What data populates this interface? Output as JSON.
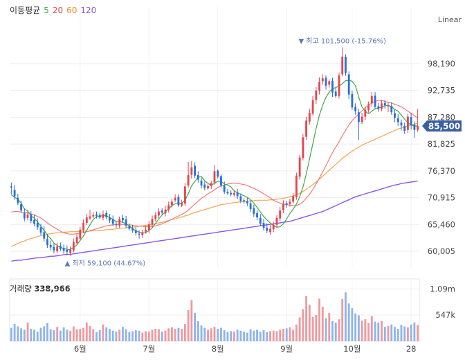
{
  "legend": {
    "title": "이동평균",
    "ma5": "5",
    "ma20": "20",
    "ma60": "60",
    "ma120": "120"
  },
  "scale_mode": "Linear",
  "volume_panel": {
    "label": "거래량",
    "value": "338,966"
  },
  "colors": {
    "up": "#e8434f",
    "down": "#2a6fd6",
    "ma5": "#3ea84a",
    "ma20": "#f07a7a",
    "ma60": "#f5a54a",
    "ma120": "#8f55e0",
    "badge": "#3b5fa0",
    "annotation": "#5a79b3"
  },
  "chart_data": {
    "type": "candlestick",
    "price_axis": {
      "ticks": [
        "98,190",
        "92,735",
        "87,280",
        "81,825",
        "76,370",
        "70,915",
        "65,460",
        "60,005"
      ],
      "tick_values": [
        98190,
        92735,
        87280,
        81825,
        76370,
        70915,
        65460,
        60005
      ],
      "ylim": [
        56500,
        105500
      ]
    },
    "volume_axis": {
      "ticks": [
        "1.09m",
        "547k"
      ],
      "tick_values": [
        1090000,
        547000
      ],
      "ylim": [
        0,
        1300000
      ]
    },
    "x_ticks": [
      "6월",
      "7월",
      "8월",
      "9월",
      "10월",
      "28"
    ],
    "current_price": "85,500",
    "max_annotation": "최고 101,500 (-15.76%)",
    "min_annotation": "최저 59,100 (44.67%)",
    "n_sessions": 125,
    "x_tick_index": [
      21,
      42,
      63,
      84,
      104,
      122
    ],
    "closes": [
      73000,
      71200,
      69800,
      68300,
      66700,
      67500,
      66200,
      65600,
      64900,
      63800,
      62600,
      61300,
      60800,
      60200,
      61000,
      60500,
      60100,
      59900,
      60400,
      61900,
      62900,
      64400,
      65800,
      66900,
      67100,
      67400,
      67200,
      66900,
      67600,
      66900,
      66300,
      65600,
      65300,
      66600,
      66300,
      65200,
      64600,
      64200,
      63700,
      63400,
      63900,
      64400,
      65500,
      66600,
      67400,
      68100,
      67900,
      68500,
      69400,
      70100,
      70900,
      69400,
      69800,
      73200,
      75500,
      77100,
      75400,
      74600,
      73400,
      72900,
      73300,
      73900,
      76300,
      75200,
      73400,
      72100,
      71800,
      71600,
      71900,
      71200,
      70300,
      70200,
      69800,
      68600,
      67600,
      66900,
      65600,
      64800,
      64200,
      64600,
      65400,
      66800,
      68300,
      69700,
      69500,
      70100,
      71200,
      75400,
      79100,
      83200,
      86600,
      88200,
      90800,
      92700,
      94500,
      95200,
      93700,
      94600,
      92300,
      91600,
      95800,
      99600,
      96300,
      91900,
      89300,
      88500,
      86300,
      87400,
      88800,
      89900,
      91600,
      89400,
      89000,
      90100,
      89700,
      89600,
      88300,
      87200,
      86300,
      85600,
      84500,
      87400,
      85600,
      84700,
      85500
    ],
    "opens": [
      73200,
      72500,
      70900,
      69600,
      67800,
      66800,
      67500,
      66400,
      65800,
      64900,
      63900,
      62500,
      61300,
      60900,
      60000,
      61100,
      60700,
      60300,
      59700,
      60200,
      61700,
      62600,
      64300,
      65800,
      66700,
      67100,
      67500,
      67400,
      66800,
      67800,
      66900,
      66500,
      65500,
      65200,
      66800,
      66500,
      65100,
      64700,
      64300,
      63600,
      63300,
      64000,
      64300,
      65400,
      66600,
      67300,
      68300,
      67700,
      68500,
      69400,
      70400,
      71100,
      69300,
      69700,
      73400,
      75600,
      77400,
      75500,
      74400,
      73600,
      72800,
      73300,
      74000,
      76400,
      75300,
      73400,
      72100,
      71900,
      71500,
      72000,
      71200,
      70400,
      70200,
      69800,
      68800,
      67800,
      66800,
      65800,
      64800,
      63900,
      64500,
      65400,
      66700,
      68400,
      69800,
      69600,
      70100,
      71000,
      75200,
      79000,
      83300,
      86400,
      88000,
      90800,
      92700,
      94600,
      95300,
      93900,
      94700,
      92500,
      91600,
      96000,
      99600,
      96000,
      92000,
      89400,
      88300,
      86300,
      87400,
      88700,
      90100,
      91700,
      89500,
      89000,
      90200,
      89500,
      89600,
      88100,
      87100,
      86200,
      85500,
      84700,
      87300,
      85800,
      84700
    ],
    "highs": [
      74000,
      73500,
      71700,
      70300,
      68800,
      68400,
      68200,
      67500,
      66700,
      65600,
      65100,
      63500,
      62200,
      61700,
      61800,
      61800,
      61400,
      61200,
      61000,
      62600,
      63500,
      65000,
      66500,
      67600,
      68400,
      68000,
      68100,
      67900,
      68300,
      68300,
      67600,
      67300,
      66200,
      67100,
      67400,
      67200,
      65700,
      65400,
      64900,
      64300,
      64400,
      65200,
      66200,
      67300,
      68000,
      68800,
      68800,
      69300,
      70100,
      70700,
      71600,
      71600,
      70500,
      73900,
      78200,
      78400,
      78100,
      76300,
      75000,
      74200,
      73700,
      74400,
      77600,
      76700,
      75700,
      74200,
      72700,
      72400,
      72500,
      72700,
      71800,
      70800,
      70900,
      70400,
      69500,
      68400,
      67600,
      66600,
      65700,
      65400,
      66000,
      67400,
      69000,
      70400,
      70300,
      70700,
      71900,
      76000,
      79600,
      83900,
      87400,
      89000,
      91600,
      93400,
      95400,
      96000,
      95800,
      95000,
      95300,
      93200,
      96400,
      101500,
      100100,
      96600,
      92700,
      90100,
      89000,
      88200,
      89500,
      90500,
      92400,
      92400,
      90200,
      90800,
      90800,
      90300,
      90300,
      88900,
      87900,
      86800,
      86200,
      88000,
      88200,
      86400,
      89000
    ],
    "lows": [
      71600,
      70500,
      69400,
      67800,
      66100,
      66300,
      65700,
      65100,
      64400,
      63300,
      62000,
      60700,
      60200,
      59600,
      59600,
      60100,
      59500,
      59200,
      59100,
      59800,
      61400,
      62300,
      63700,
      65400,
      66400,
      66800,
      66700,
      66500,
      66300,
      66500,
      65800,
      65100,
      64800,
      64700,
      65800,
      64700,
      64200,
      63800,
      63200,
      62600,
      62700,
      63600,
      63700,
      64800,
      66100,
      66800,
      67500,
      67100,
      67900,
      68800,
      70000,
      69000,
      69000,
      69200,
      72900,
      74800,
      74900,
      74000,
      72800,
      72400,
      72500,
      72700,
      73600,
      74800,
      73000,
      71700,
      71500,
      71200,
      71100,
      70600,
      69800,
      69700,
      69200,
      68000,
      67000,
      66300,
      65100,
      64200,
      63700,
      63400,
      63900,
      64800,
      66200,
      67800,
      68900,
      69100,
      69700,
      70500,
      74600,
      78500,
      82700,
      85800,
      87600,
      90000,
      91900,
      93900,
      92900,
      93300,
      91400,
      91200,
      91100,
      95600,
      95700,
      91000,
      88800,
      87800,
      82700,
      85900,
      86700,
      88200,
      89400,
      88900,
      88400,
      88500,
      89000,
      88300,
      87800,
      86300,
      85500,
      84600,
      83900,
      84100,
      84800,
      83100,
      84300
    ],
    "volumes": [
      280000,
      360000,
      310000,
      270000,
      240000,
      390000,
      260000,
      240000,
      200000,
      280000,
      310000,
      380000,
      250000,
      230000,
      300000,
      220000,
      290000,
      240000,
      220000,
      310000,
      250000,
      260000,
      280000,
      390000,
      320000,
      250000,
      190000,
      230000,
      350000,
      290000,
      260000,
      220000,
      200000,
      240000,
      300000,
      250000,
      190000,
      210000,
      230000,
      220000,
      180000,
      210000,
      200000,
      240000,
      260000,
      250000,
      200000,
      220000,
      270000,
      290000,
      260000,
      280000,
      260000,
      360000,
      650000,
      860000,
      590000,
      420000,
      330000,
      280000,
      240000,
      270000,
      300000,
      260000,
      280000,
      230000,
      190000,
      210000,
      200000,
      240000,
      220000,
      200000,
      180000,
      250000,
      220000,
      240000,
      200000,
      230000,
      190000,
      210000,
      220000,
      210000,
      240000,
      260000,
      270000,
      290000,
      240000,
      350000,
      500000,
      670000,
      940000,
      760000,
      510000,
      550000,
      890000,
      720000,
      480000,
      590000,
      420000,
      390000,
      460000,
      880000,
      1020000,
      790000,
      690000,
      580000,
      540000,
      430000,
      460000,
      380000,
      520000,
      410000,
      390000,
      420000,
      300000,
      320000,
      350000,
      300000,
      260000,
      340000,
      310000,
      290000,
      350000,
      390000,
      339000
    ],
    "ma5": [
      71500,
      71000,
      70600,
      69800,
      68600,
      68200,
      67300,
      66700,
      66000,
      65100,
      64300,
      63300,
      62600,
      61700,
      61200,
      60800,
      60600,
      60400,
      60400,
      60800,
      61300,
      62200,
      63100,
      64300,
      65400,
      66500,
      67100,
      67100,
      67300,
      67200,
      66900,
      66500,
      66100,
      66100,
      65900,
      65600,
      65200,
      64600,
      64200,
      63900,
      63700,
      63800,
      64200,
      64800,
      65700,
      66600,
      67400,
      68000,
      68700,
      69300,
      69700,
      69700,
      69800,
      70400,
      71700,
      73300,
      74200,
      75100,
      75200,
      74400,
      73800,
      73500,
      73800,
      74300,
      74200,
      73700,
      73500,
      73100,
      72300,
      71900,
      71600,
      71300,
      71000,
      70500,
      69800,
      68900,
      68000,
      67100,
      66400,
      65800,
      65200,
      64900,
      65000,
      65600,
      66600,
      67700,
      68600,
      69600,
      71100,
      73100,
      75700,
      78800,
      81900,
      85000,
      87700,
      89700,
      91300,
      92400,
      93100,
      93300,
      93600,
      94100,
      94700,
      94800,
      94600,
      93700,
      91400,
      89400,
      88500,
      88000,
      88500,
      89000,
      89100,
      89400,
      89600,
      89700,
      89400,
      88900,
      88500,
      87700,
      86900,
      86200,
      85700,
      85500,
      85500
    ],
    "ma20": [
      68000,
      68100,
      68100,
      68000,
      67900,
      67800,
      67600,
      67400,
      67100,
      66800,
      66300,
      65800,
      65300,
      64900,
      64500,
      64100,
      63800,
      63600,
      63500,
      63500,
      63600,
      63700,
      63800,
      64000,
      64200,
      64400,
      64600,
      64800,
      65000,
      65200,
      65300,
      65400,
      65500,
      65500,
      65500,
      65400,
      65400,
      65300,
      65200,
      65100,
      65100,
      65000,
      65000,
      65100,
      65200,
      65400,
      65600,
      65900,
      66200,
      66500,
      66900,
      67200,
      67500,
      67900,
      68400,
      69000,
      69600,
      70200,
      70800,
      71200,
      71700,
      72100,
      72500,
      73000,
      73300,
      73500,
      73700,
      73800,
      73900,
      73800,
      73700,
      73600,
      73400,
      73100,
      72800,
      72500,
      72100,
      71700,
      71300,
      70900,
      70400,
      70100,
      69800,
      69600,
      69500,
      69400,
      69300,
      69300,
      69600,
      70100,
      70800,
      71600,
      72600,
      73700,
      74900,
      76200,
      77400,
      78800,
      80100,
      81200,
      82300,
      83500,
      84600,
      85700,
      86600,
      87300,
      87900,
      88600,
      89200,
      89700,
      90200,
      90500,
      90700,
      90700,
      90500,
      90300,
      90200,
      89900,
      89700,
      89400,
      89000,
      88500,
      88100,
      87600,
      87100
    ],
    "ma60": [
      61000,
      61300,
      61600,
      61900,
      62100,
      62400,
      62600,
      62800,
      63000,
      63200,
      63300,
      63500,
      63600,
      63700,
      63800,
      63800,
      63900,
      63900,
      64000,
      64000,
      64000,
      64100,
      64100,
      64100,
      64100,
      64200,
      64200,
      64300,
      64300,
      64400,
      64400,
      64500,
      64600,
      64700,
      64700,
      64800,
      64900,
      64900,
      65000,
      65100,
      65200,
      65300,
      65400,
      65500,
      65600,
      65800,
      65900,
      66100,
      66300,
      66500,
      66600,
      66800,
      67000,
      67200,
      67400,
      67700,
      67900,
      68100,
      68300,
      68500,
      68700,
      68900,
      69100,
      69300,
      69500,
      69600,
      69700,
      69800,
      69900,
      70000,
      70100,
      70100,
      70200,
      70300,
      70300,
      70400,
      70400,
      70400,
      70400,
      70500,
      70500,
      70600,
      70700,
      70800,
      70900,
      71100,
      71300,
      71500,
      71800,
      72200,
      72600,
      73100,
      73600,
      74100,
      74700,
      75300,
      75900,
      76500,
      77100,
      77700,
      78300,
      78900,
      79400,
      79900,
      80400,
      80800,
      81200,
      81600,
      81900,
      82200,
      82500,
      82800,
      83100,
      83400,
      83700,
      84000,
      84300,
      84600,
      84900,
      85100,
      85300,
      85500,
      85700,
      85900,
      86100
    ],
    "ma120": [
      58000,
      58100,
      58200,
      58200,
      58300,
      58400,
      58500,
      58600,
      58700,
      58700,
      58800,
      58900,
      59000,
      59000,
      59100,
      59200,
      59300,
      59400,
      59400,
      59500,
      59600,
      59700,
      59800,
      59900,
      60000,
      60100,
      60200,
      60300,
      60400,
      60500,
      60600,
      60700,
      60800,
      60900,
      61000,
      61100,
      61200,
      61300,
      61400,
      61500,
      61600,
      61700,
      61800,
      61900,
      62000,
      62100,
      62200,
      62300,
      62400,
      62500,
      62600,
      62700,
      62800,
      62900,
      63000,
      63100,
      63200,
      63300,
      63400,
      63500,
      63600,
      63700,
      63800,
      63900,
      64000,
      64100,
      64200,
      64300,
      64400,
      64500,
      64600,
      64700,
      64800,
      64900,
      65000,
      65100,
      65200,
      65300,
      65400,
      65500,
      65600,
      65700,
      65800,
      65900,
      66000,
      66100,
      66300,
      66500,
      66700,
      66900,
      67100,
      67300,
      67500,
      67700,
      67900,
      68100,
      68400,
      68700,
      69000,
      69300,
      69600,
      69900,
      70200,
      70500,
      70800,
      71100,
      71300,
      71500,
      71700,
      71900,
      72100,
      72300,
      72500,
      72700,
      72900,
      73100,
      73300,
      73500,
      73600,
      73800,
      73900,
      74000,
      74100,
      74200,
      74300
    ]
  }
}
